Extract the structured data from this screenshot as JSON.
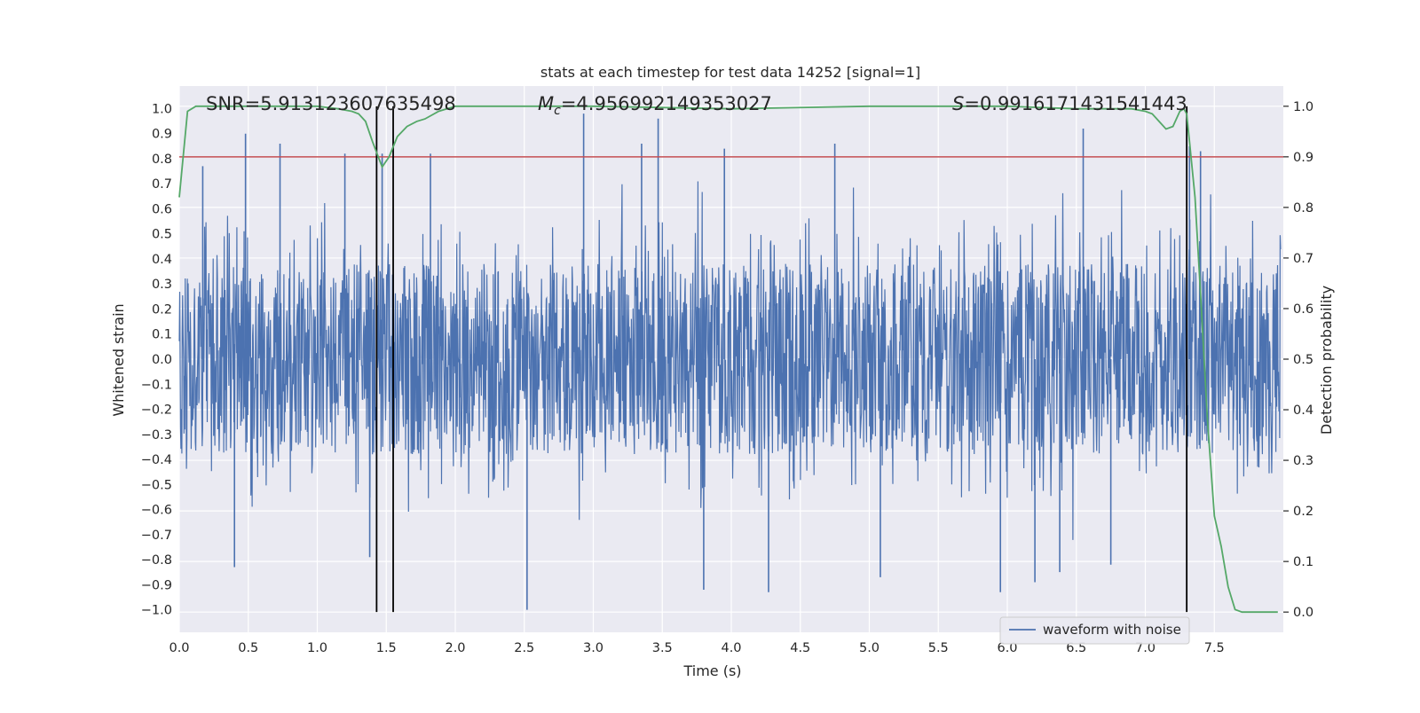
{
  "chart_data": {
    "type": "line",
    "title": "stats at each timestep for test data 14252 [signal=1]",
    "xlabel": "Time (s)",
    "ylabel": "Whitened strain",
    "ylabel_right": "Detection probability",
    "xlim": [
      0.0,
      8.0
    ],
    "ylim": [
      -1.09,
      1.09
    ],
    "ylim_right": [
      -0.04,
      1.04
    ],
    "x_ticks": [
      "0.0",
      "0.5",
      "1.0",
      "1.5",
      "2.0",
      "2.5",
      "3.0",
      "3.5",
      "4.0",
      "4.5",
      "5.0",
      "5.5",
      "6.0",
      "6.5",
      "7.0",
      "7.5"
    ],
    "y_ticks": [
      "1.0",
      "0.9",
      "0.8",
      "0.7",
      "0.6",
      "0.5",
      "0.4",
      "0.3",
      "0.2",
      "0.1",
      "0.0",
      "-0.1",
      "-0.2",
      "-0.3",
      "-0.4",
      "-0.5",
      "-0.6",
      "-0.7",
      "-0.8",
      "-0.9",
      "-1.0"
    ],
    "y_ticks_right": [
      "1.0",
      "0.9",
      "0.8",
      "0.7",
      "0.6",
      "0.5",
      "0.4",
      "0.3",
      "0.2",
      "0.1",
      "0.0"
    ],
    "grid": true,
    "annotations": {
      "snr": "SNR=5.913123607635498",
      "mc_symbol": "M",
      "mc_subscript": "c",
      "mc_value": "=4.956992149353027",
      "s_symbol": "S",
      "s_value": "=0.9916171431541443"
    },
    "legend": {
      "label": "waveform with noise",
      "placement": "lower-right"
    },
    "threshold": {
      "value": 0.9,
      "axis": "right",
      "color": "#c44e52"
    },
    "vertical_lines": [
      1.43,
      1.55,
      7.3
    ],
    "waveform": {
      "name": "waveform with noise",
      "color": "#4c72b0",
      "core_amplitude": 0.38,
      "spike_peaks_positive": [
        {
          "x": 0.17,
          "y": 0.77
        },
        {
          "x": 0.48,
          "y": 0.9
        },
        {
          "x": 0.73,
          "y": 0.86
        },
        {
          "x": 1.2,
          "y": 0.82
        },
        {
          "x": 1.47,
          "y": 0.82
        },
        {
          "x": 1.82,
          "y": 0.82
        },
        {
          "x": 2.93,
          "y": 0.98
        },
        {
          "x": 3.35,
          "y": 0.86
        },
        {
          "x": 3.47,
          "y": 0.96
        },
        {
          "x": 3.95,
          "y": 0.84
        },
        {
          "x": 4.75,
          "y": 0.86
        },
        {
          "x": 6.55,
          "y": 0.92
        },
        {
          "x": 7.32,
          "y": 0.85
        },
        {
          "x": 7.4,
          "y": 0.83
        }
      ],
      "spike_peaks_negative": [
        {
          "x": 0.4,
          "y": -0.83
        },
        {
          "x": 1.38,
          "y": -0.79
        },
        {
          "x": 2.52,
          "y": -1.0
        },
        {
          "x": 3.8,
          "y": -0.92
        },
        {
          "x": 4.27,
          "y": -0.93
        },
        {
          "x": 5.08,
          "y": -0.87
        },
        {
          "x": 5.95,
          "y": -0.93
        },
        {
          "x": 6.2,
          "y": -0.89
        },
        {
          "x": 6.38,
          "y": -0.85
        },
        {
          "x": 6.75,
          "y": -0.82
        }
      ]
    },
    "detection_probability": {
      "name": "Detection probability",
      "color": "#55a868",
      "x": [
        0.0,
        0.06,
        0.12,
        0.2,
        0.4,
        0.8,
        1.0,
        1.15,
        1.25,
        1.3,
        1.35,
        1.4,
        1.47,
        1.52,
        1.58,
        1.65,
        1.72,
        1.78,
        1.88,
        2.0,
        3.0,
        4.0,
        5.0,
        6.0,
        6.5,
        6.9,
        7.0,
        7.05,
        7.1,
        7.15,
        7.2,
        7.25,
        7.28,
        7.3,
        7.32,
        7.36,
        7.4,
        7.45,
        7.5,
        7.55,
        7.6,
        7.65,
        7.7,
        7.8,
        7.96
      ],
      "y": [
        0.82,
        0.99,
        1.0,
        1.0,
        1.0,
        1.0,
        1.0,
        0.995,
        0.99,
        0.985,
        0.97,
        0.93,
        0.88,
        0.9,
        0.94,
        0.96,
        0.97,
        0.975,
        0.99,
        1.0,
        1.0,
        0.995,
        1.0,
        1.0,
        0.995,
        0.995,
        0.99,
        0.985,
        0.97,
        0.955,
        0.96,
        0.99,
        0.995,
        0.985,
        0.93,
        0.82,
        0.63,
        0.38,
        0.19,
        0.13,
        0.05,
        0.005,
        0.0,
        0.0,
        0.0
      ]
    }
  }
}
